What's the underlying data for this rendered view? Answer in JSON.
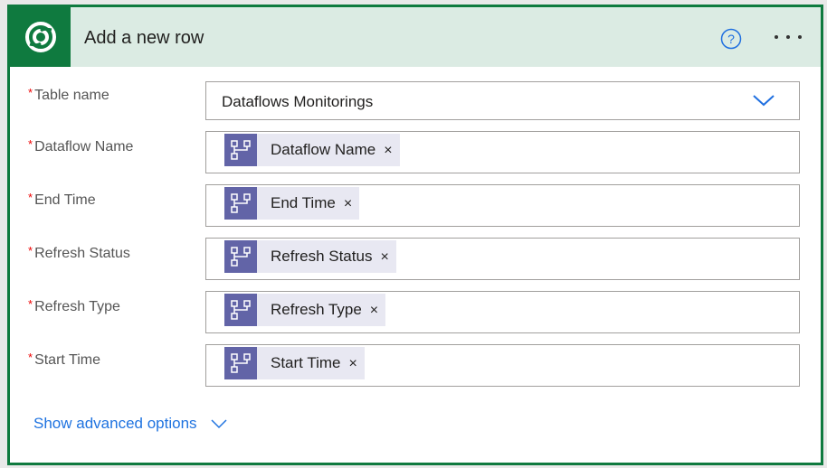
{
  "header": {
    "title": "Add a new row",
    "logo_icon": "dataverse-logo-icon",
    "help_icon": "question-circle-icon",
    "more_icon": "ellipsis-icon",
    "color": "#0f7a3f"
  },
  "table": {
    "label": "Table name",
    "value": "Dataflows Monitorings",
    "required": true
  },
  "fields": [
    {
      "label": "Dataflow Name",
      "token": "Dataflow Name"
    },
    {
      "label": "End Time",
      "token": "End Time"
    },
    {
      "label": "Refresh Status",
      "token": "Refresh Status"
    },
    {
      "label": "Refresh Type",
      "token": "Refresh Type"
    },
    {
      "label": "Start Time",
      "token": "Start Time"
    }
  ],
  "required_mark": "*",
  "remove_glyph": "×",
  "advanced": {
    "label": "Show advanced options"
  }
}
